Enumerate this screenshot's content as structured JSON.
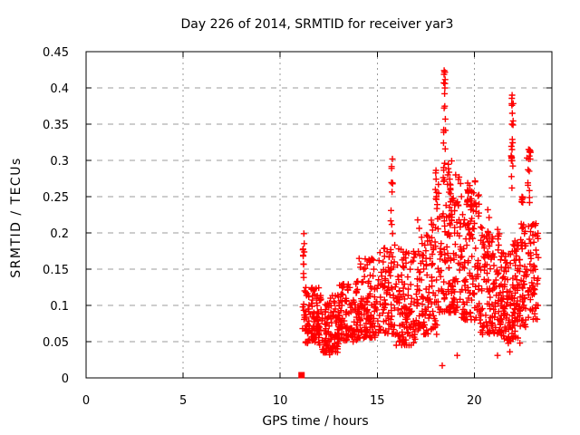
{
  "chart_data": {
    "type": "scatter",
    "title": "Day 226 of 2014, SRMTID for receiver yar3",
    "xlabel": "GPS time / hours",
    "ylabel": "SRMTID / TECUs",
    "xlim": [
      0,
      24
    ],
    "ylim": [
      0,
      0.45
    ],
    "xticks": [
      0,
      5,
      10,
      15,
      20
    ],
    "yticks": [
      0,
      0.05,
      0.1,
      0.15,
      0.2,
      0.25,
      0.3,
      0.35,
      0.4,
      0.45
    ],
    "grid": true,
    "legend": "none",
    "colors": {
      "marker": "#ff0000",
      "grid": "#9b9b9b",
      "axis": "#000000",
      "text": "#000000",
      "background": "#ffffff"
    },
    "marker": {
      "glyph": "plus",
      "size": 7,
      "color": "#ff0000"
    },
    "special_points": [
      {
        "x": 11.1,
        "y": 0.0,
        "glyph": "filled-square",
        "color": "#ff0000"
      }
    ],
    "notable_points": [
      [
        18.45,
        0.424
      ],
      [
        18.43,
        0.407
      ],
      [
        18.47,
        0.392
      ],
      [
        21.95,
        0.39
      ],
      [
        21.96,
        0.365
      ],
      [
        21.94,
        0.35
      ],
      [
        15.78,
        0.302
      ],
      [
        15.74,
        0.289
      ],
      [
        22.8,
        0.315
      ],
      [
        22.84,
        0.306
      ],
      [
        18.35,
        0.017
      ],
      [
        19.12,
        0.031
      ],
      [
        21.2,
        0.031
      ],
      [
        12.55,
        0.032
      ],
      [
        22.25,
        0.055
      ],
      [
        22.35,
        0.048
      ],
      [
        11.22,
        0.199
      ],
      [
        20.7,
        0.232
      ]
    ],
    "point_model": {
      "seed": 20140226,
      "comment_bands": "each band: [x0_hours, x1_hours, n_points, y_min_TECU, y_max_TECU, low_bias_power]",
      "bands": [
        [
          11.15,
          11.35,
          12,
          0.05,
          0.125,
          1.2
        ],
        [
          11.3,
          12.0,
          85,
          0.048,
          0.125,
          1.3
        ],
        [
          12.0,
          13.0,
          110,
          0.035,
          0.115,
          1.3
        ],
        [
          13.0,
          14.0,
          110,
          0.05,
          0.135,
          1.4
        ],
        [
          14.0,
          15.0,
          110,
          0.055,
          0.165,
          1.5
        ],
        [
          15.0,
          15.9,
          85,
          0.06,
          0.185,
          1.5
        ],
        [
          15.9,
          17.0,
          120,
          0.045,
          0.185,
          1.5
        ],
        [
          17.0,
          18.1,
          115,
          0.06,
          0.22,
          1.6
        ],
        [
          18.1,
          18.6,
          45,
          0.09,
          0.27,
          1.4
        ],
        [
          18.6,
          19.3,
          90,
          0.09,
          0.28,
          1.6
        ],
        [
          19.3,
          20.3,
          110,
          0.08,
          0.26,
          1.6
        ],
        [
          20.3,
          21.3,
          110,
          0.06,
          0.21,
          1.5
        ],
        [
          21.3,
          22.15,
          105,
          0.05,
          0.175,
          1.4
        ],
        [
          22.0,
          22.65,
          75,
          0.07,
          0.2,
          1.4
        ],
        [
          22.6,
          23.3,
          60,
          0.08,
          0.22,
          1.3
        ]
      ],
      "comment_strands": "each vertical strand/spike: [x_hours, x_jitter, y_min, y_max, n_points]",
      "strands": [
        [
          11.22,
          0.05,
          0.13,
          0.2,
          10
        ],
        [
          15.75,
          0.06,
          0.19,
          0.3,
          9
        ],
        [
          18.05,
          0.08,
          0.2,
          0.295,
          10
        ],
        [
          18.46,
          0.04,
          0.37,
          0.425,
          8
        ],
        [
          18.47,
          0.07,
          0.27,
          0.36,
          12
        ],
        [
          18.75,
          0.1,
          0.22,
          0.305,
          12
        ],
        [
          19.85,
          0.25,
          0.2,
          0.275,
          22
        ],
        [
          20.7,
          0.08,
          0.16,
          0.235,
          8
        ],
        [
          21.75,
          0.1,
          0.035,
          0.09,
          8
        ],
        [
          21.96,
          0.05,
          0.26,
          0.395,
          14
        ],
        [
          21.93,
          0.03,
          0.293,
          0.307,
          5
        ],
        [
          22.45,
          0.12,
          0.19,
          0.26,
          10
        ],
        [
          22.8,
          0.12,
          0.24,
          0.315,
          14
        ],
        [
          23.05,
          0.1,
          0.1,
          0.2,
          8
        ]
      ]
    }
  }
}
